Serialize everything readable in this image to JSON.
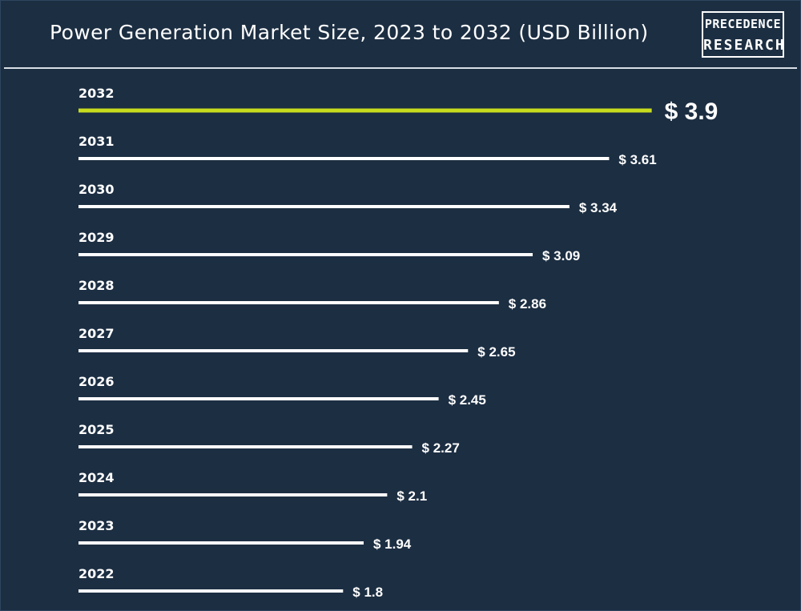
{
  "header": {
    "title": "Power Generation Market Size, 2023 to 2032 (USD Billion)",
    "logo_line1": "PRECEDENCE",
    "logo_line2": "RESEARCH"
  },
  "colors": {
    "background": "#1c2e42",
    "bar": "#ffffff",
    "highlight": "#c8dc1e",
    "text": "#ffffff"
  },
  "chart_data": {
    "type": "bar",
    "orientation": "horizontal",
    "title": "Power Generation Market Size, 2023 to 2032 (USD Billion)",
    "categories": [
      "2032",
      "2031",
      "2030",
      "2029",
      "2028",
      "2027",
      "2026",
      "2025",
      "2024",
      "2023",
      "2022"
    ],
    "values": [
      3.9,
      3.61,
      3.34,
      3.09,
      2.86,
      2.65,
      2.45,
      2.27,
      2.1,
      1.94,
      1.8
    ],
    "value_labels": [
      "$ 3.9",
      "$ 3.61",
      "$ 3.34",
      "$ 3.09",
      "$ 2.86",
      "$ 2.65",
      "$ 2.45",
      "$ 2.27",
      "$ 2.1",
      "$ 1.94",
      "$ 1.8"
    ],
    "highlighted_category": "2032",
    "grid": false,
    "legend": "none"
  }
}
